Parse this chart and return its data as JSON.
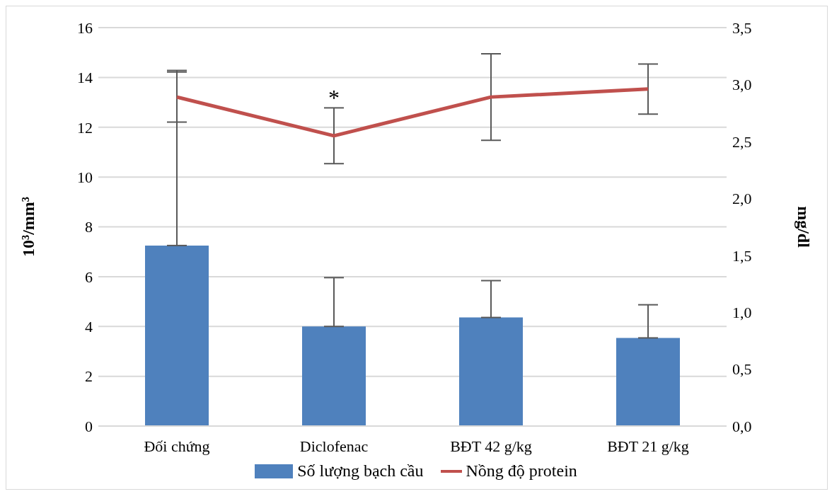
{
  "chart_data": {
    "type": "bar",
    "categories": [
      "Đối chứng",
      "Diclofenac",
      "BĐT 42 g/kg",
      "BĐT 21 g/kg"
    ],
    "ylabel": "10³/mm³",
    "y2label": "mg/dl",
    "series": [
      {
        "name": "Số lượng bạch cầu",
        "color": "#4f81bd",
        "values": [
          7.25,
          4.0,
          4.36,
          3.54
        ],
        "errors": [
          [
            7.25,
            14.28
          ],
          [
            4.0,
            5.96
          ],
          [
            4.36,
            5.84
          ],
          [
            3.54,
            4.87
          ]
        ]
      },
      {
        "name": "Nồng độ protein",
        "type": "line",
        "axis": "y2",
        "color": "#c0504d",
        "values": [
          2.89,
          2.55,
          2.89,
          2.96
        ],
        "errors": [
          0.22,
          0.245,
          0.38,
          0.22
        ]
      }
    ],
    "ylim": [
      0,
      16
    ],
    "yticks": [
      0,
      2,
      4,
      6,
      8,
      10,
      12,
      14,
      16
    ],
    "y2lim": [
      0,
      3.5
    ],
    "y2ticks": [
      {
        "value": 0,
        "label": "0,0"
      },
      {
        "value": 0.5,
        "label": "0,5"
      },
      {
        "value": 1,
        "label": "1,0"
      },
      {
        "value": 1.5,
        "label": "1,5"
      },
      {
        "value": 2,
        "label": "2,0"
      },
      {
        "value": 2.5,
        "label": "2,5"
      },
      {
        "value": 3,
        "label": "3,0"
      },
      {
        "value": 3.5,
        "label": "3,5"
      }
    ],
    "annotations": [
      "*"
    ],
    "grid": "y",
    "legend": "bottom",
    "marker": "none",
    "line_style": "solid"
  }
}
